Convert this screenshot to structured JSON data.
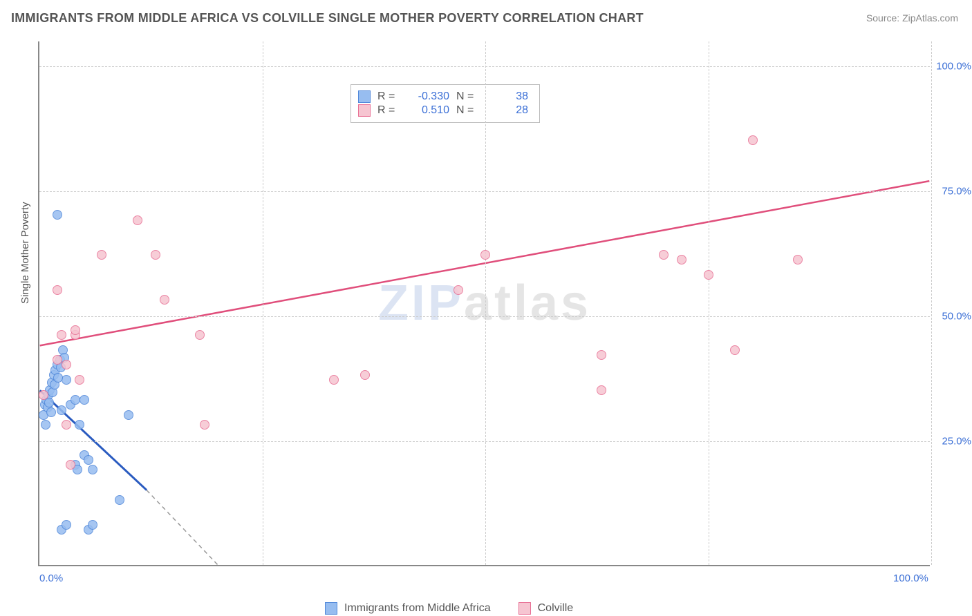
{
  "title": "IMMIGRANTS FROM MIDDLE AFRICA VS COLVILLE SINGLE MOTHER POVERTY CORRELATION CHART",
  "source_label": "Source: ZipAtlas.com",
  "watermark": {
    "lead": "ZIP",
    "tail": "atlas"
  },
  "y_axis_label": "Single Mother Poverty",
  "chart": {
    "type": "scatter",
    "background_color": "#ffffff",
    "grid_color": "#cccccc",
    "axis_color": "#888888",
    "tick_color": "#3b6fd6",
    "tick_fontsize": 15,
    "title_fontsize": 18,
    "xlim": [
      0,
      100
    ],
    "ylim": [
      0,
      105
    ],
    "y_ticks": [
      {
        "value": 25,
        "label": "25.0%"
      },
      {
        "value": 50,
        "label": "50.0%"
      },
      {
        "value": 75,
        "label": "75.0%"
      },
      {
        "value": 100,
        "label": "100.0%"
      }
    ],
    "x_ticks": [
      {
        "value": 0,
        "label": "0.0%"
      },
      {
        "value": 100,
        "label": "100.0%"
      }
    ],
    "x_vgrids": [
      25,
      50,
      75,
      100
    ],
    "marker_radius": 7,
    "marker_border_width": 1.5,
    "series": [
      {
        "key": "series_a",
        "name": "Immigrants from Middle Africa",
        "fill_color": "#97bdf0",
        "border_color": "#4f87d9",
        "line_color": "#2a5bc0",
        "dash_color": "#999999",
        "stats": {
          "R": "-0.330",
          "N": "38"
        },
        "trend": {
          "x1": 0,
          "y1": 35,
          "x2": 12,
          "y2": 15,
          "dash_to_x": 20,
          "dash_to_y": 0
        },
        "points": [
          [
            2.0,
            70.0
          ],
          [
            0.5,
            30.0
          ],
          [
            0.6,
            32.0
          ],
          [
            0.8,
            33.0
          ],
          [
            1.0,
            34.0
          ],
          [
            1.2,
            35.0
          ],
          [
            1.4,
            36.5
          ],
          [
            1.6,
            38.0
          ],
          [
            1.8,
            39.0
          ],
          [
            2.0,
            40.0
          ],
          [
            2.3,
            41.0
          ],
          [
            2.6,
            43.0
          ],
          [
            3.0,
            37.0
          ],
          [
            3.5,
            32.0
          ],
          [
            4.0,
            33.0
          ],
          [
            2.5,
            31.0
          ],
          [
            5.0,
            33.0
          ],
          [
            10.0,
            30.0
          ],
          [
            4.5,
            28.0
          ],
          [
            5.0,
            22.0
          ],
          [
            5.5,
            21.0
          ],
          [
            4.0,
            20.0
          ],
          [
            4.3,
            19.0
          ],
          [
            6.0,
            19.0
          ],
          [
            9.0,
            13.0
          ],
          [
            2.5,
            7.0
          ],
          [
            3.0,
            8.0
          ],
          [
            5.5,
            7.0
          ],
          [
            6.0,
            8.0
          ],
          [
            0.9,
            31.5
          ],
          [
            1.1,
            32.5
          ],
          [
            1.3,
            30.5
          ],
          [
            1.5,
            34.5
          ],
          [
            1.7,
            36.0
          ],
          [
            2.1,
            37.5
          ],
          [
            2.4,
            39.5
          ],
          [
            2.8,
            41.5
          ],
          [
            0.7,
            28.0
          ]
        ]
      },
      {
        "key": "series_b",
        "name": "Colville",
        "fill_color": "#f6c5d1",
        "border_color": "#e86f94",
        "line_color": "#e04e7b",
        "stats": {
          "R": "0.510",
          "N": "28"
        },
        "trend": {
          "x1": 0,
          "y1": 44,
          "x2": 100,
          "y2": 77
        },
        "points": [
          [
            80.0,
            85.0
          ],
          [
            85.0,
            61.0
          ],
          [
            75.0,
            58.0
          ],
          [
            70.0,
            62.0
          ],
          [
            72.0,
            61.0
          ],
          [
            50.0,
            62.0
          ],
          [
            47.0,
            55.0
          ],
          [
            63.0,
            35.0
          ],
          [
            78.0,
            43.0
          ],
          [
            63.0,
            42.0
          ],
          [
            33.0,
            37.0
          ],
          [
            36.5,
            38.0
          ],
          [
            18.5,
            28.0
          ],
          [
            18.0,
            46.0
          ],
          [
            14.0,
            53.0
          ],
          [
            7.0,
            62.0
          ],
          [
            13.0,
            62.0
          ],
          [
            11.0,
            69.0
          ],
          [
            2.0,
            55.0
          ],
          [
            2.5,
            46.0
          ],
          [
            0.5,
            34.0
          ],
          [
            3.0,
            40.0
          ],
          [
            4.0,
            46.0
          ],
          [
            4.5,
            37.0
          ],
          [
            3.0,
            28.0
          ],
          [
            4.0,
            47.0
          ],
          [
            2.0,
            41.0
          ],
          [
            3.5,
            20.0
          ]
        ]
      }
    ],
    "stats_legend": {
      "R_label": "R =",
      "N_label": "N ="
    }
  }
}
